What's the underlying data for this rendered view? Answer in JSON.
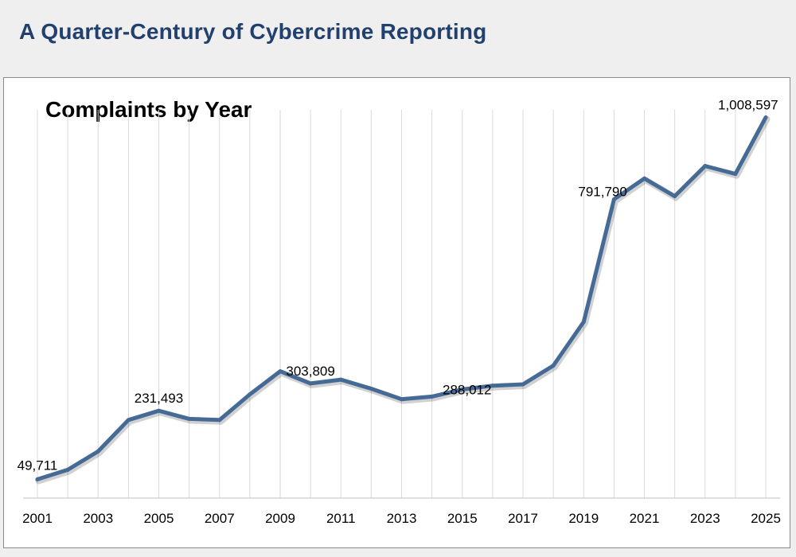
{
  "page": {
    "title": "A Quarter-Century of Cybercrime Reporting"
  },
  "chart_data": {
    "type": "line",
    "title": "Complaints by Year",
    "xlabel": "",
    "ylabel": "",
    "ylim": [
      0,
      1050000
    ],
    "grid": "vertical",
    "legend": "none",
    "x": [
      2001,
      2002,
      2003,
      2004,
      2005,
      2006,
      2007,
      2008,
      2009,
      2010,
      2011,
      2012,
      2013,
      2014,
      2015,
      2016,
      2017,
      2018,
      2019,
      2020,
      2021,
      2022,
      2023,
      2024,
      2025
    ],
    "x_tick_labels": [
      "2001",
      "2003",
      "2005",
      "2007",
      "2009",
      "2011",
      "2013",
      "2015",
      "2017",
      "2019",
      "2021",
      "2023",
      "2025"
    ],
    "series": [
      {
        "color": "#466a96",
        "values": [
          49711,
          75000,
          124000,
          207000,
          231493,
          210000,
          207000,
          275000,
          336000,
          303809,
          314000,
          290000,
          262000,
          269000,
          288012,
          298000,
          301580,
          351000,
          467000,
          791790,
          847000,
          800000,
          880000,
          859000,
          1008597
        ]
      }
    ],
    "data_labels": [
      {
        "index": 0,
        "text": "49,711"
      },
      {
        "index": 4,
        "text": "231,493"
      },
      {
        "index": 9,
        "text": "303,809"
      },
      {
        "index": 14,
        "text": "288,012"
      },
      {
        "index": 19,
        "text": "791,790"
      },
      {
        "index": 24,
        "text": "1,008,597"
      }
    ]
  }
}
